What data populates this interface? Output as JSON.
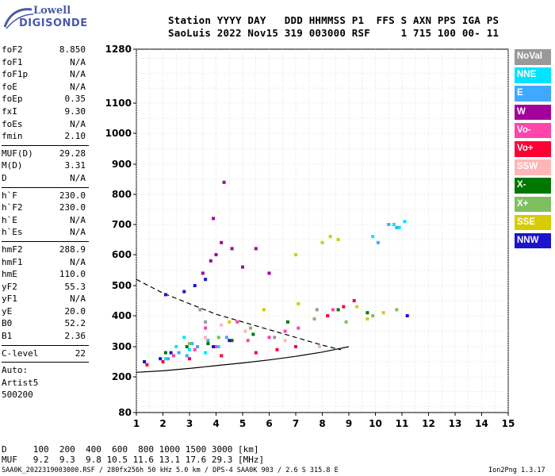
{
  "logo": {
    "line1": "Lowell",
    "line2": "DIGISONDE"
  },
  "header": {
    "row1": "Station YYYY DAY   DDD HHMMSS P1  FFS S AXN PPS IGA PS",
    "row2": "SaoLuis 2022 Nov15 319 003000 RSF     1 715 100 00- 11"
  },
  "params": {
    "group1": [
      {
        "label": "foF2",
        "value": "8.850"
      },
      {
        "label": "foF1",
        "value": "N/A"
      },
      {
        "label": "foF1p",
        "value": "N/A"
      },
      {
        "label": "foE",
        "value": "N/A"
      },
      {
        "label": "foEp",
        "value": "0.35"
      },
      {
        "label": "fxI",
        "value": "9.30"
      },
      {
        "label": "foEs",
        "value": "N/A"
      },
      {
        "label": "fmin",
        "value": "2.10"
      }
    ],
    "group2": [
      {
        "label": "MUF(D)",
        "value": "29.28"
      },
      {
        "label": "M(D)",
        "value": "3.31"
      },
      {
        "label": "D",
        "value": "N/A"
      }
    ],
    "group3": [
      {
        "label": "h`F",
        "value": "230.0"
      },
      {
        "label": "h`F2",
        "value": "230.0"
      },
      {
        "label": "h`E",
        "value": "N/A"
      },
      {
        "label": "h`Es",
        "value": "N/A"
      }
    ],
    "group4": [
      {
        "label": "hmF2",
        "value": "288.9"
      },
      {
        "label": "hmF1",
        "value": "N/A"
      },
      {
        "label": "hmE",
        "value": "110.0"
      },
      {
        "label": "yF2",
        "value": "55.3"
      },
      {
        "label": "yF1",
        "value": "N/A"
      },
      {
        "label": "yE",
        "value": "20.0"
      },
      {
        "label": "B0",
        "value": "52.2"
      },
      {
        "label": "B1",
        "value": "2.36"
      }
    ],
    "group5": [
      {
        "label": "C-level",
        "value": "22"
      }
    ],
    "notes": [
      "Auto:",
      "Artist5",
      "500200"
    ]
  },
  "legend": [
    {
      "label": "NoVal",
      "color": "#999999"
    },
    {
      "label": "NNE",
      "color": "#00e5ff"
    },
    {
      "label": "E",
      "color": "#3fa9ff"
    },
    {
      "label": "W",
      "color": "#a3009c"
    },
    {
      "label": "Vo-",
      "color": "#ff44aa"
    },
    {
      "label": "Vo+",
      "color": "#ff0033"
    },
    {
      "label": "SSW",
      "color": "#ffb6b6"
    },
    {
      "label": "X-",
      "color": "#007800"
    },
    {
      "label": "X+",
      "color": "#7fbf5f"
    },
    {
      "label": "SSE",
      "color": "#d6cc00"
    },
    {
      "label": "NNW",
      "color": "#1a14cc"
    }
  ],
  "footer": {
    "d_row": "D     100  200  400  600  800 1000 1500 3000 [km]",
    "muf_row": "MUF   9.2  9.3  9.8 10.5 11.6 13.1 17.6 29.3 [MHz]",
    "file": "SAA0K_2022319003000.RSF / 280fx256h 50 kHz 5.0 km / DPS-4 SAA0K 903 / 2.6 S 315.8 E",
    "version": "Ion2Png 1.3.17"
  },
  "chart_data": {
    "type": "scatter",
    "x_ticks": [
      "1",
      "2",
      "3",
      "4",
      "5",
      "6",
      "7",
      "8",
      "9",
      "10",
      "11",
      "12",
      "13",
      "14",
      "15"
    ],
    "y_ticks": [
      "80",
      "200",
      "300",
      "400",
      "500",
      "600",
      "700",
      "800",
      "900",
      "1000",
      "1100",
      "1280"
    ],
    "x_range": [
      1,
      15
    ],
    "y_range": [
      80,
      1280
    ],
    "y_scale": "nonlinear",
    "grid": true,
    "series": [
      {
        "name": "NoVal",
        "color": "#999999",
        "x": [
          3.4,
          3.6,
          6.2,
          7.8
        ],
        "y": [
          420,
          380,
          330,
          420
        ]
      },
      {
        "name": "NNE",
        "color": "#00e5ff",
        "x": [
          2.5,
          3.0,
          3.6,
          4.1,
          10.7,
          10.9,
          11.1,
          2.1,
          2.8,
          9.9
        ],
        "y": [
          300,
          290,
          280,
          300,
          700,
          690,
          710,
          260,
          330,
          660
        ]
      },
      {
        "name": "E",
        "color": "#3fa9ff",
        "x": [
          2.2,
          2.6,
          3.1,
          3.7,
          4.4,
          10.1,
          10.5,
          2.9,
          3.3,
          10.8
        ],
        "y": [
          260,
          280,
          310,
          320,
          330,
          640,
          700,
          270,
          300,
          690
        ]
      },
      {
        "name": "W",
        "color": "#a3009c",
        "x": [
          3.5,
          3.8,
          4.0,
          4.2,
          4.6,
          5.0,
          5.5,
          3.9,
          4.3,
          6.0
        ],
        "y": [
          540,
          580,
          600,
          640,
          620,
          560,
          620,
          720,
          840,
          540
        ]
      },
      {
        "name": "Vo-",
        "color": "#ff44aa",
        "x": [
          2.4,
          3.2,
          4.0,
          5.2,
          6.0,
          7.1,
          8.4,
          3.6,
          4.8,
          6.6
        ],
        "y": [
          270,
          290,
          300,
          320,
          330,
          360,
          420,
          360,
          380,
          350
        ]
      },
      {
        "name": "Vo+",
        "color": "#ff0033",
        "x": [
          1.4,
          2.0,
          3.0,
          4.2,
          5.5,
          6.3,
          7.0,
          8.2,
          8.8,
          9.2
        ],
        "y": [
          240,
          250,
          260,
          270,
          280,
          290,
          300,
          400,
          430,
          450
        ]
      },
      {
        "name": "SSW",
        "color": "#ffb6b6",
        "x": [
          3.6,
          4.2,
          5.1,
          6.6,
          7.9
        ],
        "y": [
          330,
          370,
          350,
          320,
          300
        ]
      },
      {
        "name": "X-",
        "color": "#007800",
        "x": [
          2.1,
          2.9,
          3.7,
          4.6,
          5.4,
          6.7,
          8.6,
          9.7
        ],
        "y": [
          280,
          300,
          310,
          320,
          340,
          380,
          420,
          410
        ]
      },
      {
        "name": "X+",
        "color": "#7fbf5f",
        "x": [
          3.0,
          4.1,
          5.3,
          7.7,
          8.9,
          9.9,
          10.8
        ],
        "y": [
          310,
          330,
          360,
          390,
          380,
          400,
          420
        ]
      },
      {
        "name": "SSE",
        "color": "#d6cc00",
        "x": [
          4.5,
          5.8,
          7.1,
          8.0,
          8.6,
          9.3,
          9.7,
          10.3,
          7.0,
          8.3
        ],
        "y": [
          380,
          420,
          440,
          640,
          650,
          430,
          390,
          410,
          600,
          660
        ]
      },
      {
        "name": "NNW",
        "color": "#1a14cc",
        "x": [
          1.3,
          1.9,
          2.3,
          2.8,
          3.2,
          3.9,
          4.5,
          2.1,
          3.6,
          11.2
        ],
        "y": [
          250,
          260,
          280,
          480,
          500,
          300,
          320,
          470,
          520,
          400
        ]
      }
    ],
    "profile_solid": {
      "x": [
        1.0,
        2.0,
        3.0,
        4.0,
        5.0,
        6.0,
        7.0,
        8.0,
        9.0
      ],
      "y": [
        215,
        220,
        228,
        237,
        246,
        256,
        268,
        282,
        300
      ]
    },
    "profile_dashed": {
      "x": [
        1.0,
        2.0,
        3.0,
        4.0,
        5.0,
        6.0,
        7.0,
        8.0,
        8.7
      ],
      "y": [
        520,
        475,
        440,
        405,
        380,
        355,
        330,
        305,
        290
      ]
    }
  }
}
